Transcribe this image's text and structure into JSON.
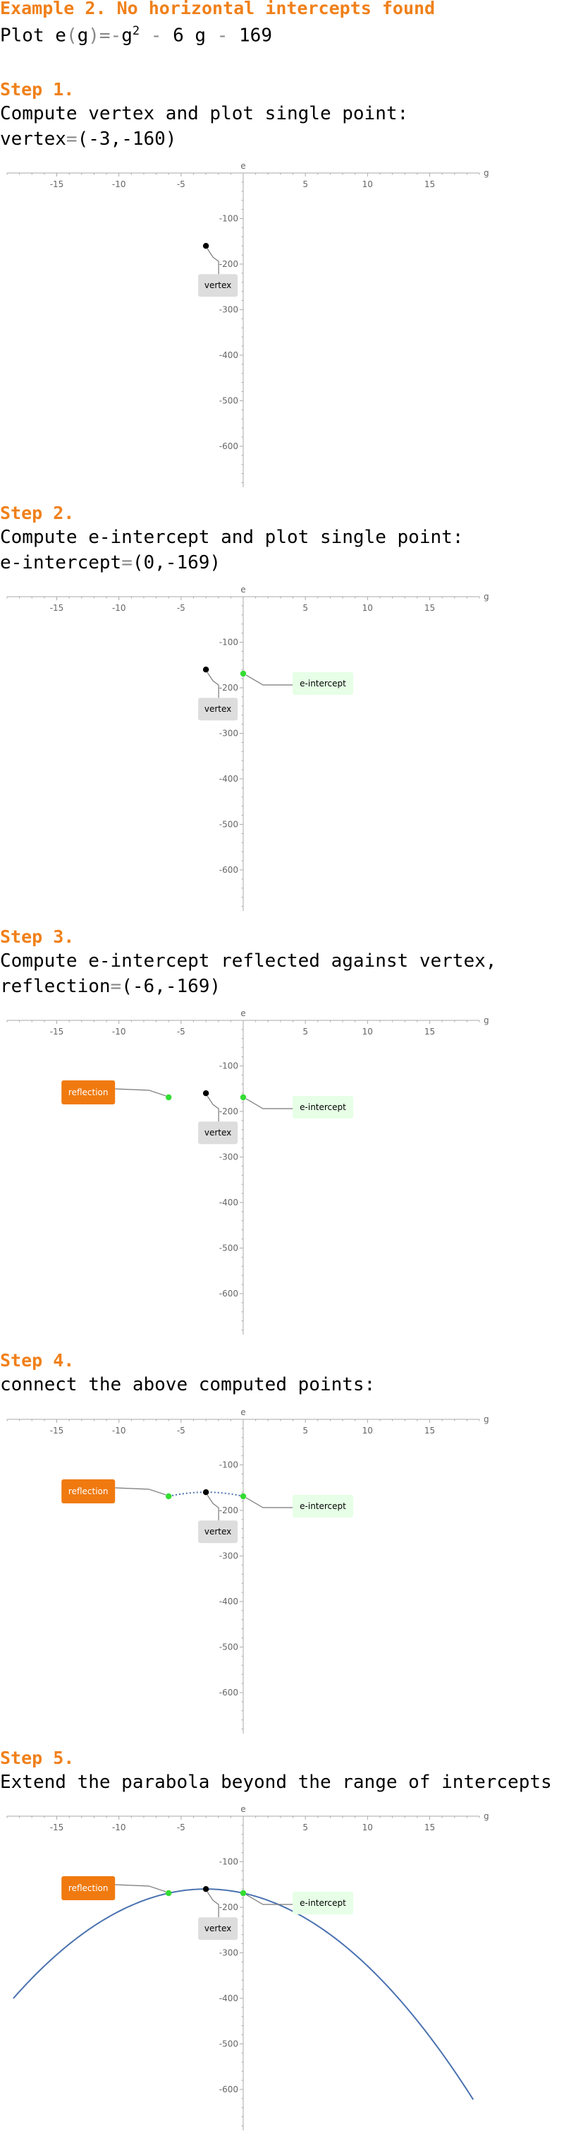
{
  "title": "Example 2. No horizontal intercepts found",
  "problem": {
    "prefix": "Plot ",
    "fname": "e",
    "var": "g",
    "expr_a": "g",
    "expr_sup": "2",
    "expr_b": "6 g",
    "expr_c": "169"
  },
  "steps": [
    {
      "header": "Step 1.",
      "line1": "Compute vertex and plot single point:",
      "line2_label": "vertex",
      "line2_value": "(-3,-160)"
    },
    {
      "header": "Step 2.",
      "line1": "Compute e-intercept and plot single point:",
      "line2_label": "e-intercept",
      "line2_value": "(0,-169)"
    },
    {
      "header": "Step 3.",
      "line1": "Compute e-intercept reflected against vertex,",
      "line2_label": "reflection",
      "line2_value": "(-6,-169)"
    },
    {
      "header": "Step 4.",
      "line1": "connect the above computed points:",
      "line2_label": "",
      "line2_value": ""
    },
    {
      "header": "Step 5.",
      "line1": "Extend the parabola beyond the range of intercepts",
      "line2_label": "",
      "line2_value": ""
    }
  ],
  "colors": {
    "header": "#f0801a",
    "vertex_point": "#000000",
    "intercept_point": "#33dd33",
    "curve": "#4a72b0",
    "vertex_label_bg": "#dddddd",
    "reflection_label_bg": "#f07a10",
    "intercept_label_bg": "#e6ffe6",
    "axis": "#aaaaaa"
  },
  "chart_data": [
    {
      "type": "scatter",
      "xlabel": "g",
      "ylabel": "e",
      "xlim": [
        -19,
        19
      ],
      "ylim": [
        -690,
        0
      ],
      "xticks": [
        -15,
        -10,
        -5,
        5,
        10,
        15
      ],
      "yticks": [
        -100,
        -200,
        -300,
        -400,
        -500,
        -600
      ],
      "points": [
        {
          "x": -3,
          "y": -160,
          "kind": "vertex",
          "label": "vertex"
        }
      ],
      "dotted_curve": false,
      "full_curve": false
    },
    {
      "type": "scatter",
      "xlabel": "g",
      "ylabel": "e",
      "xlim": [
        -19,
        19
      ],
      "ylim": [
        -690,
        0
      ],
      "xticks": [
        -15,
        -10,
        -5,
        5,
        10,
        15
      ],
      "yticks": [
        -100,
        -200,
        -300,
        -400,
        -500,
        -600
      ],
      "points": [
        {
          "x": -3,
          "y": -160,
          "kind": "vertex",
          "label": "vertex"
        },
        {
          "x": 0,
          "y": -169,
          "kind": "intercept",
          "label": "e-intercept"
        }
      ],
      "dotted_curve": false,
      "full_curve": false
    },
    {
      "type": "scatter",
      "xlabel": "g",
      "ylabel": "e",
      "xlim": [
        -19,
        19
      ],
      "ylim": [
        -690,
        0
      ],
      "xticks": [
        -15,
        -10,
        -5,
        5,
        10,
        15
      ],
      "yticks": [
        -100,
        -200,
        -300,
        -400,
        -500,
        -600
      ],
      "points": [
        {
          "x": -3,
          "y": -160,
          "kind": "vertex",
          "label": "vertex"
        },
        {
          "x": 0,
          "y": -169,
          "kind": "intercept",
          "label": "e-intercept"
        },
        {
          "x": -6,
          "y": -169,
          "kind": "reflection",
          "label": "reflection"
        }
      ],
      "dotted_curve": false,
      "full_curve": false
    },
    {
      "type": "line",
      "xlabel": "g",
      "ylabel": "e",
      "xlim": [
        -19,
        19
      ],
      "ylim": [
        -690,
        0
      ],
      "xticks": [
        -15,
        -10,
        -5,
        5,
        10,
        15
      ],
      "yticks": [
        -100,
        -200,
        -300,
        -400,
        -500,
        -600
      ],
      "points": [
        {
          "x": -3,
          "y": -160,
          "kind": "vertex",
          "label": "vertex"
        },
        {
          "x": 0,
          "y": -169,
          "kind": "intercept",
          "label": "e-intercept"
        },
        {
          "x": -6,
          "y": -169,
          "kind": "reflection",
          "label": "reflection"
        }
      ],
      "dotted_curve": true,
      "full_curve": false,
      "curve_x_range": [
        -6,
        0
      ]
    },
    {
      "type": "line",
      "xlabel": "g",
      "ylabel": "e",
      "xlim": [
        -19,
        19
      ],
      "ylim": [
        -690,
        0
      ],
      "xticks": [
        -15,
        -10,
        -5,
        5,
        10,
        15
      ],
      "yticks": [
        -100,
        -200,
        -300,
        -400,
        -500,
        -600
      ],
      "points": [
        {
          "x": -3,
          "y": -160,
          "kind": "vertex",
          "label": "vertex"
        },
        {
          "x": 0,
          "y": -169,
          "kind": "intercept",
          "label": "e-intercept"
        },
        {
          "x": -6,
          "y": -169,
          "kind": "reflection",
          "label": "reflection"
        }
      ],
      "dotted_curve": false,
      "full_curve": true,
      "curve_x_range": [
        -18.5,
        18.5
      ],
      "curve": {
        "a": -1,
        "b": -6,
        "c": -169
      }
    }
  ]
}
